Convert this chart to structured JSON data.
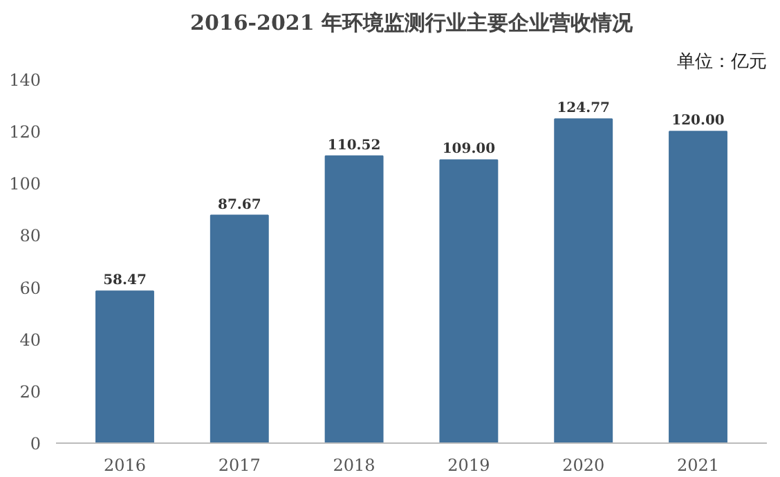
{
  "chart_data": {
    "type": "bar",
    "title": "2016-2021 年环境监测行业主要企业营收情况",
    "annotations": [
      "单位：亿元"
    ],
    "categories": [
      "2016",
      "2017",
      "2018",
      "2019",
      "2020",
      "2021"
    ],
    "values": [
      58.47,
      87.67,
      110.52,
      109.0,
      124.77,
      120.0
    ],
    "value_labels": [
      "58.47",
      "87.67",
      "110.52",
      "109.00",
      "124.77",
      "120.00"
    ],
    "color": "#41719c",
    "ylim": [
      0,
      140
    ],
    "yticks": [
      0,
      20,
      40,
      60,
      80,
      100,
      120,
      140
    ],
    "grid": false
  }
}
